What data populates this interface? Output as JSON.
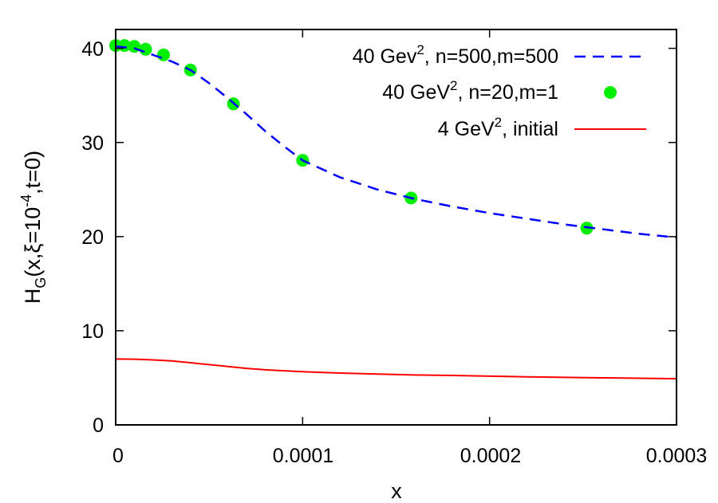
{
  "chart_data": {
    "type": "line",
    "title": "",
    "xlabel": "x",
    "ylabel": "H_G(x,ξ=10^-4,t=0)",
    "ylabel_parts": {
      "main": "H",
      "sub": "G",
      "rest1": "(x,ξ=10",
      "sup": "-4",
      "rest2": ",t=0)"
    },
    "xlim": [
      0,
      0.0003
    ],
    "ylim": [
      0,
      42
    ],
    "x_ticks": [
      "0",
      "0.0001",
      "0.0002",
      "0.0003"
    ],
    "y_ticks": [
      "0",
      "10",
      "20",
      "30",
      "40"
    ],
    "grid": false,
    "legend_position": "top-right",
    "series": [
      {
        "name": "40 Gev², n=500,m=500",
        "legend": {
          "pre": "40 Gev",
          "sup": "2",
          "post": ", n=500,m=500"
        },
        "style": "dashed-line",
        "color": "#0000ff",
        "x": [
          0,
          1e-05,
          2e-05,
          3e-05,
          4e-05,
          5e-05,
          6e-05,
          7e-05,
          8e-05,
          9e-05,
          0.0001,
          0.00012,
          0.00014,
          0.00016,
          0.00018,
          0.0002,
          0.00022,
          0.00024,
          0.00026,
          0.00028,
          0.0003
        ],
        "y": [
          40.2,
          40.0,
          39.3,
          38.6,
          37.7,
          36.3,
          34.7,
          33.0,
          31.2,
          29.6,
          28.1,
          26.3,
          25.0,
          24.0,
          23.2,
          22.5,
          21.9,
          21.3,
          20.8,
          20.3,
          19.9
        ]
      },
      {
        "name": "40 GeV², n=20,m=1",
        "legend": {
          "pre": "40 GeV",
          "sup": "2",
          "post": ", n=20,m=1"
        },
        "style": "points",
        "color": "#00ee00",
        "x": [
          0,
          4.7e-06,
          1e-05,
          1.6e-05,
          2.56e-05,
          4e-05,
          6.3e-05,
          0.0001,
          0.000158,
          0.000252
        ],
        "y": [
          40.3,
          40.3,
          40.2,
          39.9,
          39.3,
          37.7,
          34.1,
          28.1,
          24.1,
          20.9
        ]
      },
      {
        "name": "4 GeV², initial",
        "legend": {
          "pre": "4 GeV",
          "sup": "2",
          "post": ", initial"
        },
        "style": "solid-line",
        "color": "#ff0000",
        "x": [
          0,
          1e-05,
          2e-05,
          3e-05,
          4e-05,
          5e-05,
          6e-05,
          7e-05,
          8e-05,
          9e-05,
          0.0001,
          0.00012,
          0.00014,
          0.00016,
          0.00018,
          0.0002,
          0.00022,
          0.00024,
          0.00026,
          0.00028,
          0.0003
        ],
        "y": [
          7.0,
          6.98,
          6.9,
          6.8,
          6.6,
          6.4,
          6.2,
          6.0,
          5.85,
          5.75,
          5.65,
          5.5,
          5.4,
          5.3,
          5.25,
          5.18,
          5.1,
          5.05,
          5.0,
          4.95,
          4.9
        ]
      }
    ]
  }
}
